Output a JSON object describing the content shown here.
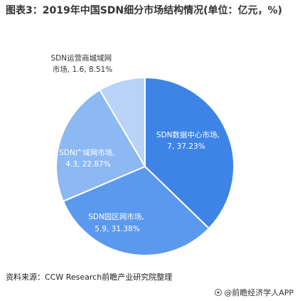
{
  "title": "图表3：2019年中国SDN细分市场结构情况(单位：亿元，%)",
  "source": "资料来源：CCW Research前瞻产业研究院整理",
  "brand": "@前瞻经济学人APP",
  "colors": {
    "text_dark": "#333333",
    "label_on_dark": "#ffffff",
    "label_on_light": "#333333"
  },
  "chart_data": {
    "type": "pie",
    "slices": [
      {
        "name": "SDN数据中心市场",
        "value": 7,
        "percent": 37.23,
        "color": "#3d84e6",
        "label_line1": "SDN数据中心市场,",
        "label_line2": "7, 37.23%"
      },
      {
        "name": "SDN园区网市场",
        "value": 5.9,
        "percent": 31.38,
        "color": "#5b99ee",
        "label_line1": "SDN园区网市场,",
        "label_line2": "5.9, 31.38%"
      },
      {
        "name": "SDN广域网市场",
        "value": 4.3,
        "percent": 22.87,
        "color": "#8cb8f3",
        "label_line1": "SDN广域网市场,",
        "label_line2": "4.3, 22.87%"
      },
      {
        "name": "SDN运营商城域网市场",
        "value": 1.6,
        "percent": 8.51,
        "color": "#b9d3f8",
        "label_line1": "SDN运营商城域网",
        "label_line2": "市场, 1.6, 8.51%"
      }
    ]
  }
}
